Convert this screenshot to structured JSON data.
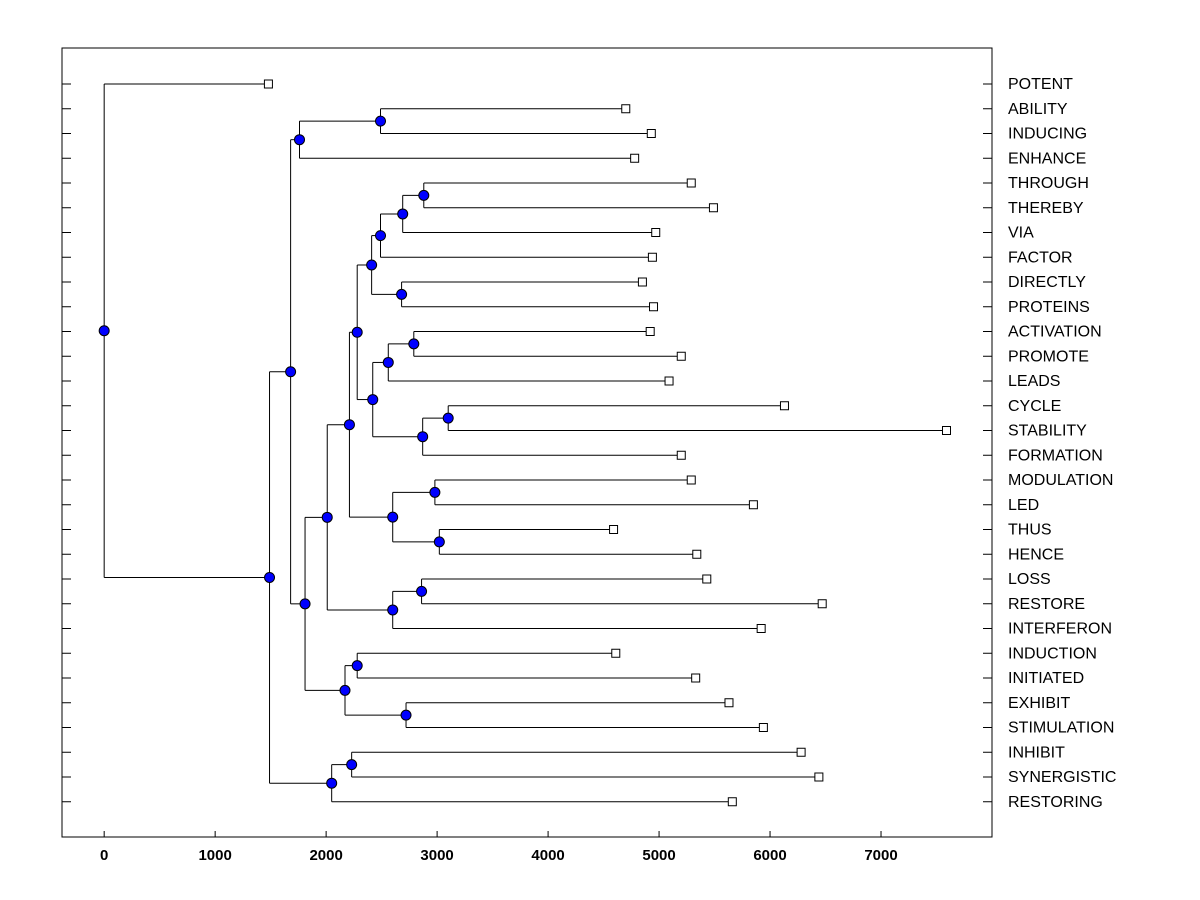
{
  "chart_data": {
    "type": "dendrogram",
    "title": "",
    "xlabel": "",
    "ylabel": "",
    "xlim": [
      -380,
      8000
    ],
    "x_ticks": [
      0,
      1000,
      2000,
      3000,
      4000,
      5000,
      6000,
      7000
    ],
    "grid": false,
    "orientation": "leaves-right",
    "colors": {
      "node": "#0000ff",
      "leaf": "#ffffff",
      "line": "#000000"
    },
    "leaves": [
      {
        "label": "POTENT",
        "x": 1480
      },
      {
        "label": "ABILITY",
        "x": 4700
      },
      {
        "label": "INDUCING",
        "x": 4930
      },
      {
        "label": "ENHANCE",
        "x": 4780
      },
      {
        "label": "THROUGH",
        "x": 5290
      },
      {
        "label": "THEREBY",
        "x": 5490
      },
      {
        "label": "VIA",
        "x": 4970
      },
      {
        "label": "FACTOR",
        "x": 4940
      },
      {
        "label": "DIRECTLY",
        "x": 4850
      },
      {
        "label": "PROTEINS",
        "x": 4950
      },
      {
        "label": "ACTIVATION",
        "x": 4920
      },
      {
        "label": "PROMOTE",
        "x": 5200
      },
      {
        "label": "LEADS",
        "x": 5090
      },
      {
        "label": "CYCLE",
        "x": 6130
      },
      {
        "label": "STABILITY",
        "x": 7590
      },
      {
        "label": "FORMATION",
        "x": 5200
      },
      {
        "label": "MODULATION",
        "x": 5290
      },
      {
        "label": "LED",
        "x": 5850
      },
      {
        "label": "THUS",
        "x": 4590
      },
      {
        "label": "HENCE",
        "x": 5340
      },
      {
        "label": "LOSS",
        "x": 5430
      },
      {
        "label": "RESTORE",
        "x": 6470
      },
      {
        "label": "INTERFERON",
        "x": 5920
      },
      {
        "label": "INDUCTION",
        "x": 4610
      },
      {
        "label": "INITIATED",
        "x": 5330
      },
      {
        "label": "EXHIBIT",
        "x": 5630
      },
      {
        "label": "STIMULATION",
        "x": 5940
      },
      {
        "label": "INHIBIT",
        "x": 6280
      },
      {
        "label": "SYNERGISTIC",
        "x": 6440
      },
      {
        "label": "RESTORING",
        "x": 5660
      }
    ],
    "merges": [
      {
        "id": "n1",
        "x": 2490,
        "children": [
          "ABILITY",
          "INDUCING"
        ]
      },
      {
        "id": "n2",
        "x": 1760,
        "children": [
          "n1",
          "ENHANCE"
        ]
      },
      {
        "id": "n3",
        "x": 2880,
        "children": [
          "THROUGH",
          "THEREBY"
        ]
      },
      {
        "id": "n4",
        "x": 2690,
        "children": [
          "n3",
          "VIA"
        ]
      },
      {
        "id": "n5",
        "x": 2490,
        "children": [
          "n4",
          "FACTOR"
        ]
      },
      {
        "id": "n6",
        "x": 2680,
        "children": [
          "DIRECTLY",
          "PROTEINS"
        ]
      },
      {
        "id": "n7",
        "x": 2410,
        "children": [
          "n5",
          "n6"
        ]
      },
      {
        "id": "n8",
        "x": 2790,
        "children": [
          "ACTIVATION",
          "PROMOTE"
        ]
      },
      {
        "id": "n9",
        "x": 2560,
        "children": [
          "n8",
          "LEADS"
        ]
      },
      {
        "id": "n10",
        "x": 3100,
        "children": [
          "CYCLE",
          "STABILITY"
        ]
      },
      {
        "id": "n11",
        "x": 2870,
        "children": [
          "n10",
          "FORMATION"
        ]
      },
      {
        "id": "n12",
        "x": 2420,
        "children": [
          "n9",
          "n11"
        ]
      },
      {
        "id": "n13",
        "x": 2280,
        "children": [
          "n7",
          "n12"
        ]
      },
      {
        "id": "n14",
        "x": 2980,
        "children": [
          "MODULATION",
          "LED"
        ]
      },
      {
        "id": "n15",
        "x": 3020,
        "children": [
          "THUS",
          "HENCE"
        ]
      },
      {
        "id": "n16",
        "x": 2600,
        "children": [
          "n14",
          "n15"
        ]
      },
      {
        "id": "n17",
        "x": 2210,
        "children": [
          "n13",
          "n16"
        ]
      },
      {
        "id": "n18",
        "x": 2860,
        "children": [
          "LOSS",
          "RESTORE"
        ]
      },
      {
        "id": "n19",
        "x": 2600,
        "children": [
          "n18",
          "INTERFERON"
        ]
      },
      {
        "id": "n20",
        "x": 2010,
        "children": [
          "n17",
          "n19"
        ]
      },
      {
        "id": "n21",
        "x": 2280,
        "children": [
          "INDUCTION",
          "INITIATED"
        ]
      },
      {
        "id": "n22",
        "x": 2720,
        "children": [
          "EXHIBIT",
          "STIMULATION"
        ]
      },
      {
        "id": "n23",
        "x": 2170,
        "children": [
          "n21",
          "n22"
        ]
      },
      {
        "id": "n24",
        "x": 1810,
        "children": [
          "n20",
          "n23"
        ]
      },
      {
        "id": "n25",
        "x": 1680,
        "children": [
          "n2",
          "n24"
        ]
      },
      {
        "id": "n26",
        "x": 2230,
        "children": [
          "INHIBIT",
          "SYNERGISTIC"
        ]
      },
      {
        "id": "n27",
        "x": 2050,
        "children": [
          "n26",
          "RESTORING"
        ]
      },
      {
        "id": "n28",
        "x": 1490,
        "children": [
          "n25",
          "n27"
        ]
      },
      {
        "id": "n29",
        "x": 0,
        "children": [
          "POTENT",
          "n28"
        ]
      }
    ]
  }
}
